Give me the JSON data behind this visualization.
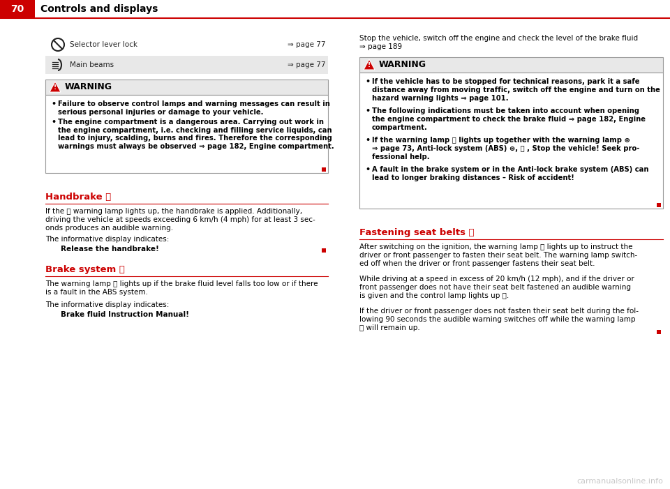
{
  "bg_color": "#ffffff",
  "header_red": "#cc0000",
  "header_text_color": "#ffffff",
  "page_number": "70",
  "header_title": "Controls and displays",
  "body_text_color": "#000000",
  "warning_bg": "#f0f0f0",
  "row2_bg": "#e8e8e8",
  "row1_text": "Selector lever lock",
  "row1_page": "⇒ page 77",
  "row2_text": "Main beams",
  "row2_page": "⇒ page 77",
  "warn1_title": "WARNING",
  "warn1_b1": "Failure to observe control lamps and warning messages can result in\nserious personal injuries or damage to your vehicle.",
  "warn1_b2": "The engine compartment is a dangerous area. Carrying out work in\nthe engine compartment, i.e. checking and filling service liquids, can\nlead to injury, scalding, burns and fires. Therefore the corresponding\nwarnings must always be observed ⇒ page 182, Engine compartment.",
  "handbrake_title": "Handbrake ⓟ",
  "handbrake_body1": "If the ⓟ warning lamp lights up, the handbrake is applied. Additionally,",
  "handbrake_body2": "driving the vehicle at speeds exceeding 6 km/h (4 mph) for at least 3 sec-",
  "handbrake_body3": "onds produces an audible warning.",
  "handbrake_indicates": "The informative display indicates:",
  "handbrake_msg": "Release the handbrake!",
  "brake_title": "Brake system ⓘ",
  "brake_body1": "The warning lamp ⓘ lights up if the brake fluid level falls too low or if there",
  "brake_body2": "is a fault in the ABS system.",
  "brake_indicates": "The informative display indicates:",
  "brake_msg": "Brake fluid Instruction Manual!",
  "right_intro1": "Stop the vehicle, switch off the engine and check the level of the brake fluid",
  "right_intro2": "⇒ page 189",
  "warn2_title": "WARNING",
  "warn2_b1l1": "If the vehicle has to be stopped for technical reasons, park it a safe",
  "warn2_b1l2": "distance away from moving traffic, switch off the engine and turn on the",
  "warn2_b1l3": "hazard warning lights ⇒ page 101.",
  "warn2_b2l1": "The following indications must be taken into account when opening",
  "warn2_b2l2": "the engine compartment to check the brake fluid ⇒ page 182, Engine",
  "warn2_b2l3": "compartment.",
  "warn2_b3l1": "If the warning lamp Ⓢ lights up together with the warning lamp ⊛",
  "warn2_b3l2": "⇒ page 73, Anti-lock system (ABS) ⊛, Ⓣ , Stop the vehicle! Seek pro-",
  "warn2_b3l3": "fessional help.",
  "warn2_b4l1": "A fault in the brake system or in the Anti-lock brake system (ABS) can",
  "warn2_b4l2": "lead to longer braking distances – Risk of accident!",
  "seat_belts_title": "Fastening seat belts ⛓",
  "sb_b1l1": "After switching on the ignition, the warning lamp ⛓ lights up to instruct the",
  "sb_b1l2": "driver or front passenger to fasten their seat belt. The warning lamp switch-",
  "sb_b1l3": "ed off when the driver or front passenger fastens their seat belt.",
  "sb_b2l1": "While driving at a speed in excess of 20 km/h (12 mph), and if the driver or",
  "sb_b2l2": "front passenger does not have their seat belt fastened an audible warning",
  "sb_b2l3": "is given and the control lamp lights up ⛓.",
  "sb_b3l1": "If the driver or front passenger does not fasten their seat belt during the fol-",
  "sb_b3l2": "lowing 90 seconds the audible warning switches off while the warning lamp",
  "sb_b3l3": "⛓ will remain up.",
  "watermark": "carmanualsonline.info"
}
